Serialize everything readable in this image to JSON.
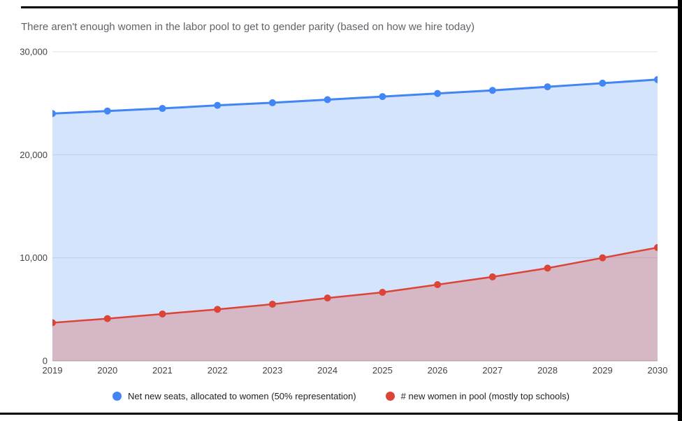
{
  "title": "There aren't enough women in the labor pool to get to gender parity (based on how we hire today)",
  "frame": {
    "edge_color": "#000000",
    "background": "#ffffff"
  },
  "axis": {
    "label_color": "#444444",
    "gridline_color": "#e3e3e3",
    "baseline_color": "#b0b0b0"
  },
  "chart_data": {
    "type": "area",
    "title": "There aren't enough women in the labor pool to get to gender parity (based on how we hire today)",
    "x": [
      "2019",
      "2020",
      "2021",
      "2022",
      "2023",
      "2024",
      "2025",
      "2026",
      "2027",
      "2028",
      "2029",
      "2030"
    ],
    "series": [
      {
        "key": "net-new-seats",
        "name": "Net new seats, allocated to women (50% representation)",
        "color": "#4285f4",
        "fill": "rgba(66,133,244,0.22)",
        "line_width": 3,
        "values": [
          24000,
          24250,
          24500,
          24800,
          25050,
          25350,
          25650,
          25950,
          26250,
          26600,
          26950,
          27300
        ]
      },
      {
        "key": "new-women-in-pool",
        "name": "# new women in pool (mostly top schools)",
        "color": "#db4437",
        "fill": "rgba(219,68,55,0.28)",
        "line_width": 2.5,
        "values": [
          3700,
          4100,
          4550,
          5000,
          5500,
          6100,
          6650,
          7400,
          8150,
          9000,
          10000,
          11000
        ]
      }
    ],
    "xlabel": "",
    "ylabel": "",
    "ylim": [
      0,
      30000
    ],
    "yticks": [
      0,
      10000,
      20000,
      30000
    ],
    "ytick_labels": [
      "0",
      "10,000",
      "20,000",
      "30,000"
    ],
    "grid": true,
    "legend_position": "bottom"
  }
}
